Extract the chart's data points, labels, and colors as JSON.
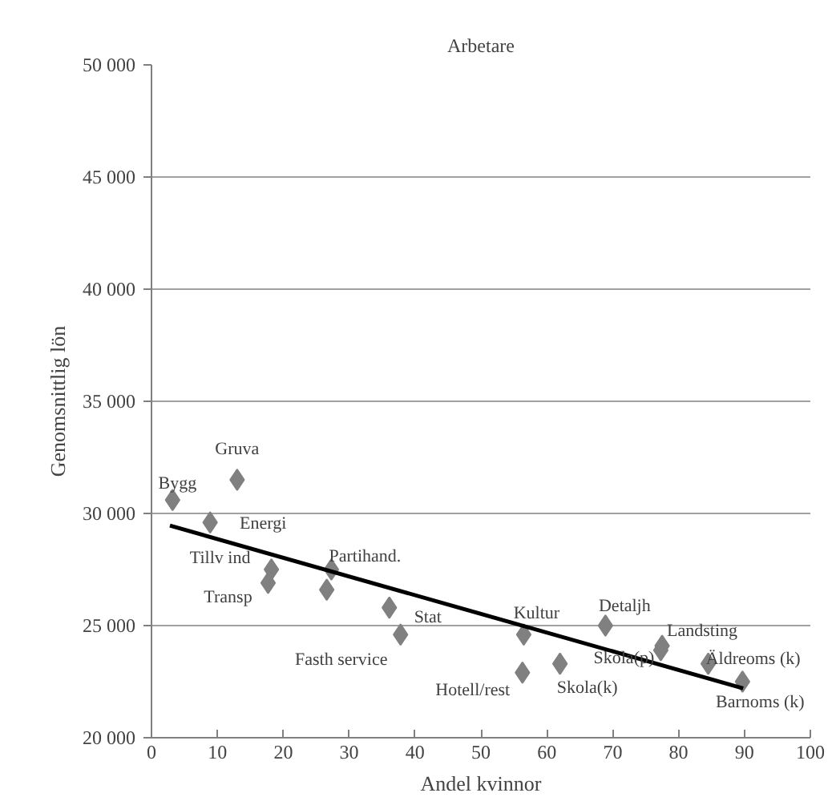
{
  "chart_data": {
    "type": "scatter",
    "title": "Arbetare",
    "xlabel": "Andel kvinnor",
    "ylabel": "Genomsnittlig lön",
    "xlim": [
      0,
      100
    ],
    "xticks": [
      0,
      10,
      20,
      30,
      40,
      50,
      60,
      70,
      80,
      90,
      100
    ],
    "ylim": [
      20000,
      50000
    ],
    "yticks": [
      {
        "value": 20000,
        "label": "20 000"
      },
      {
        "value": 25000,
        "label": "25 000"
      },
      {
        "value": 30000,
        "label": "30 000"
      },
      {
        "value": 35000,
        "label": "35 000"
      },
      {
        "value": 40000,
        "label": "40 000"
      },
      {
        "value": 45000,
        "label": "45 000"
      },
      {
        "value": 50000,
        "label": "50 000"
      }
    ],
    "grid": "y",
    "marker": "diamond",
    "series": [
      {
        "color": "#808080",
        "x": [
          3.2,
          13.0,
          8.9,
          18.2,
          17.7,
          27.3,
          26.6,
          36.1,
          37.8,
          56.5,
          56.3,
          62.0,
          68.9,
          77.5,
          77.3,
          84.5,
          89.7
        ],
        "values": [
          30600,
          31500,
          29600,
          27500,
          26900,
          27500,
          26600,
          25800,
          24600,
          24600,
          22900,
          23300,
          25000,
          24100,
          23900,
          23300,
          22500
        ]
      },
      {
        "type": "line",
        "color": "#000000",
        "marker": "none",
        "x": [
          2.8,
          89.8
        ],
        "values": [
          29460,
          22200
        ]
      }
    ],
    "annotations": [
      {
        "text": "Bygg",
        "x": 3.2,
        "y": 30600
      },
      {
        "text": "Gruva",
        "x": 13.0,
        "y": 31500
      },
      {
        "text": "Energi",
        "x": 8.9,
        "y": 29600
      },
      {
        "text": "Tillv ind",
        "x": 18.2,
        "y": 27500
      },
      {
        "text": "Transp",
        "x": 17.7,
        "y": 26900
      },
      {
        "text": "Partihand.",
        "x": 27.3,
        "y": 27500
      },
      {
        "text": "Stat",
        "x": 36.1,
        "y": 25800
      },
      {
        "text": "Fasth service",
        "x": 37.8,
        "y": 24600
      },
      {
        "text": "Kultur",
        "x": 56.5,
        "y": 24600
      },
      {
        "text": "Hotell/rest",
        "x": 56.3,
        "y": 22900
      },
      {
        "text": "Skola(k)",
        "x": 62.0,
        "y": 23300
      },
      {
        "text": "Detaljh",
        "x": 68.9,
        "y": 25000
      },
      {
        "text": "Landsting",
        "x": 77.5,
        "y": 24100
      },
      {
        "text": "Skola(p)",
        "x": 77.3,
        "y": 23900
      },
      {
        "text": "Äldreoms (k)",
        "x": 84.5,
        "y": 23300
      },
      {
        "text": "Barnoms (k)",
        "x": 89.7,
        "y": 22500
      }
    ]
  }
}
